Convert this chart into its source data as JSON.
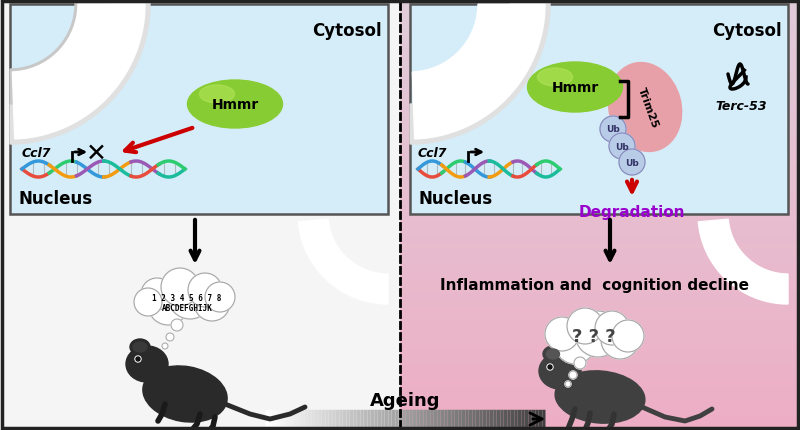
{
  "bg_left_color": "#f8f8f8",
  "bg_right_color": "#d8c0d0",
  "cell_box_color": "#daeef8",
  "hmmr_color": "#88cc33",
  "trim25_color": "#e8a0a8",
  "ub_color": "#b8cce8",
  "nucleus_label": "Nucleus",
  "cytosol_label": "Cytosol",
  "ccl7_label": "Ccl7",
  "hmmr_label": "Hmmr",
  "trim25_label": "Trim25",
  "terc53_label": "Terc-53",
  "degradation_label": "Degradation",
  "inflammation_label": "Inflammation and  cognition decline",
  "ageing_label": "Ageing",
  "degradation_color": "#9900cc",
  "dna_colors": [
    "#e74c3c",
    "#2ecc71",
    "#3498db",
    "#f39c12",
    "#9b59b6",
    "#1abc9c"
  ]
}
